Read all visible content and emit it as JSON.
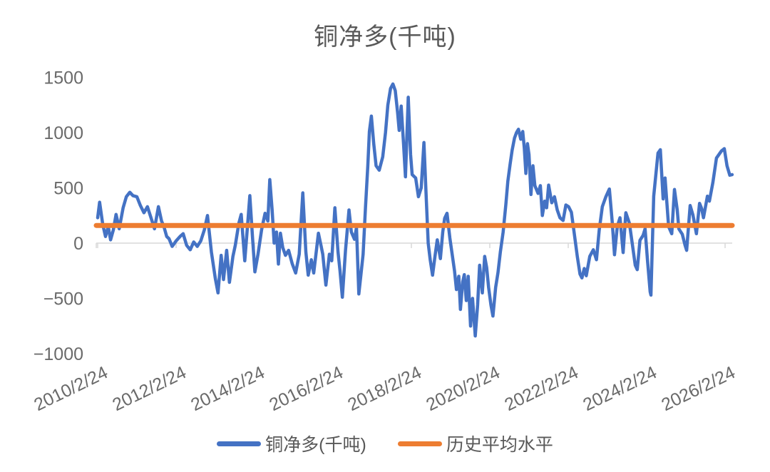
{
  "chart_data": {
    "type": "line",
    "title": "铜净多(千吨)",
    "legend_position": "bottom",
    "grid": "zero-axis-only",
    "colors": {
      "series": "#4472C4",
      "average": "#ED7D31",
      "axis": "#D9D9D9",
      "tick_text": "#6a6a6a",
      "title_text": "#595959"
    },
    "y_axis": {
      "min": -1000,
      "max": 1500,
      "ticks": [
        {
          "label": "1500",
          "value": 1500
        },
        {
          "label": "1000",
          "value": 1000
        },
        {
          "label": "500",
          "value": 500
        },
        {
          "label": "0",
          "value": 0
        },
        {
          "label": "−500",
          "value": -500
        },
        {
          "label": "−1000",
          "value": -1000
        }
      ]
    },
    "x_axis": {
      "label_rotation_deg": -26,
      "ticks": [
        {
          "label": "2010/2/24",
          "t": 2010.15
        },
        {
          "label": "2012/2/24",
          "t": 2012.15
        },
        {
          "label": "2014/2/24",
          "t": 2014.15
        },
        {
          "label": "2016/2/24",
          "t": 2016.15
        },
        {
          "label": "2018/2/24",
          "t": 2018.15
        },
        {
          "label": "2020/2/24",
          "t": 2020.15
        },
        {
          "label": "2022/2/24",
          "t": 2022.15
        },
        {
          "label": "2024/2/24",
          "t": 2024.15
        },
        {
          "label": "2026/2/24",
          "t": 2026.15
        }
      ]
    },
    "average_line": {
      "name": "历史平均水平",
      "value": 160
    },
    "series": [
      {
        "name": "铜净多(千吨)",
        "points": [
          [
            2010.15,
            230
          ],
          [
            2010.2,
            370
          ],
          [
            2010.28,
            170
          ],
          [
            2010.35,
            60
          ],
          [
            2010.42,
            150
          ],
          [
            2010.48,
            30
          ],
          [
            2010.55,
            120
          ],
          [
            2010.62,
            260
          ],
          [
            2010.7,
            130
          ],
          [
            2010.8,
            320
          ],
          [
            2010.88,
            420
          ],
          [
            2010.97,
            460
          ],
          [
            2011.05,
            430
          ],
          [
            2011.15,
            420
          ],
          [
            2011.24,
            340
          ],
          [
            2011.33,
            275
          ],
          [
            2011.42,
            330
          ],
          [
            2011.51,
            230
          ],
          [
            2011.6,
            130
          ],
          [
            2011.7,
            330
          ],
          [
            2011.78,
            200
          ],
          [
            2011.84,
            150
          ],
          [
            2011.91,
            60
          ],
          [
            2011.97,
            40
          ],
          [
            2012.05,
            -30
          ],
          [
            2012.15,
            20
          ],
          [
            2012.25,
            60
          ],
          [
            2012.33,
            85
          ],
          [
            2012.42,
            -20
          ],
          [
            2012.51,
            -60
          ],
          [
            2012.6,
            10
          ],
          [
            2012.69,
            -30
          ],
          [
            2012.78,
            20
          ],
          [
            2012.87,
            120
          ],
          [
            2012.95,
            250
          ],
          [
            2013.05,
            -80
          ],
          [
            2013.15,
            -320
          ],
          [
            2013.22,
            -450
          ],
          [
            2013.3,
            -110
          ],
          [
            2013.36,
            -330
          ],
          [
            2013.44,
            -65
          ],
          [
            2013.51,
            -355
          ],
          [
            2013.6,
            -120
          ],
          [
            2013.66,
            -20
          ],
          [
            2013.75,
            180
          ],
          [
            2013.81,
            260
          ],
          [
            2013.9,
            -160
          ],
          [
            2013.97,
            150
          ],
          [
            2014.03,
            430
          ],
          [
            2014.1,
            50
          ],
          [
            2014.16,
            -260
          ],
          [
            2014.24,
            -100
          ],
          [
            2014.33,
            120
          ],
          [
            2014.42,
            270
          ],
          [
            2014.49,
            200
          ],
          [
            2014.54,
            575
          ],
          [
            2014.6,
            300
          ],
          [
            2014.65,
            0
          ],
          [
            2014.71,
            100
          ],
          [
            2014.76,
            -190
          ],
          [
            2014.81,
            90
          ],
          [
            2014.87,
            -40
          ],
          [
            2014.94,
            -110
          ],
          [
            2015.02,
            -65
          ],
          [
            2015.11,
            -185
          ],
          [
            2015.2,
            -270
          ],
          [
            2015.29,
            -100
          ],
          [
            2015.38,
            455
          ],
          [
            2015.46,
            -80
          ],
          [
            2015.52,
            -290
          ],
          [
            2015.6,
            -150
          ],
          [
            2015.66,
            -270
          ],
          [
            2015.73,
            -60
          ],
          [
            2015.78,
            90
          ],
          [
            2015.85,
            -30
          ],
          [
            2015.89,
            -100
          ],
          [
            2015.97,
            -380
          ],
          [
            2016.06,
            -100
          ],
          [
            2016.12,
            -160
          ],
          [
            2016.2,
            320
          ],
          [
            2016.28,
            -80
          ],
          [
            2016.33,
            -250
          ],
          [
            2016.39,
            -490
          ],
          [
            2016.47,
            -65
          ],
          [
            2016.56,
            300
          ],
          [
            2016.62,
            100
          ],
          [
            2016.7,
            35
          ],
          [
            2016.75,
            140
          ],
          [
            2016.81,
            -460
          ],
          [
            2016.86,
            -300
          ],
          [
            2016.92,
            -100
          ],
          [
            2016.98,
            320
          ],
          [
            2017.04,
            700
          ],
          [
            2017.08,
            1010
          ],
          [
            2017.13,
            1150
          ],
          [
            2017.19,
            900
          ],
          [
            2017.25,
            700
          ],
          [
            2017.33,
            660
          ],
          [
            2017.42,
            780
          ],
          [
            2017.49,
            1000
          ],
          [
            2017.55,
            1250
          ],
          [
            2017.62,
            1400
          ],
          [
            2017.68,
            1440
          ],
          [
            2017.74,
            1380
          ],
          [
            2017.8,
            1180
          ],
          [
            2017.84,
            1020
          ],
          [
            2017.89,
            1240
          ],
          [
            2017.95,
            900
          ],
          [
            2018.0,
            600
          ],
          [
            2018.07,
            1320
          ],
          [
            2018.13,
            800
          ],
          [
            2018.17,
            620
          ],
          [
            2018.26,
            590
          ],
          [
            2018.33,
            420
          ],
          [
            2018.4,
            500
          ],
          [
            2018.47,
            910
          ],
          [
            2018.53,
            400
          ],
          [
            2018.58,
            0
          ],
          [
            2018.63,
            -150
          ],
          [
            2018.69,
            -290
          ],
          [
            2018.76,
            -100
          ],
          [
            2018.81,
            30
          ],
          [
            2018.89,
            -140
          ],
          [
            2018.95,
            100
          ],
          [
            2019.0,
            225
          ],
          [
            2019.06,
            270
          ],
          [
            2019.13,
            50
          ],
          [
            2019.17,
            -50
          ],
          [
            2019.25,
            -250
          ],
          [
            2019.3,
            -420
          ],
          [
            2019.36,
            -300
          ],
          [
            2019.4,
            -600
          ],
          [
            2019.46,
            -350
          ],
          [
            2019.5,
            -285
          ],
          [
            2019.55,
            -520
          ],
          [
            2019.6,
            -300
          ],
          [
            2019.66,
            -750
          ],
          [
            2019.71,
            -500
          ],
          [
            2019.78,
            -840
          ],
          [
            2019.84,
            -560
          ],
          [
            2019.89,
            -200
          ],
          [
            2019.96,
            -450
          ],
          [
            2020.02,
            -120
          ],
          [
            2020.07,
            -220
          ],
          [
            2020.12,
            -400
          ],
          [
            2020.18,
            -560
          ],
          [
            2020.23,
            -660
          ],
          [
            2020.3,
            -400
          ],
          [
            2020.36,
            -265
          ],
          [
            2020.42,
            -80
          ],
          [
            2020.49,
            100
          ],
          [
            2020.56,
            350
          ],
          [
            2020.61,
            560
          ],
          [
            2020.67,
            720
          ],
          [
            2020.72,
            840
          ],
          [
            2020.78,
            950
          ],
          [
            2020.83,
            1000
          ],
          [
            2020.88,
            1030
          ],
          [
            2020.94,
            940
          ],
          [
            2020.99,
            1010
          ],
          [
            2021.03,
            860
          ],
          [
            2021.07,
            630
          ],
          [
            2021.11,
            900
          ],
          [
            2021.15,
            800
          ],
          [
            2021.2,
            440
          ],
          [
            2021.25,
            700
          ],
          [
            2021.3,
            520
          ],
          [
            2021.38,
            450
          ],
          [
            2021.44,
            520
          ],
          [
            2021.49,
            250
          ],
          [
            2021.55,
            380
          ],
          [
            2021.6,
            320
          ],
          [
            2021.65,
            525
          ],
          [
            2021.73,
            365
          ],
          [
            2021.8,
            420
          ],
          [
            2021.87,
            300
          ],
          [
            2021.94,
            230
          ],
          [
            2022.02,
            205
          ],
          [
            2022.09,
            345
          ],
          [
            2022.16,
            330
          ],
          [
            2022.23,
            280
          ],
          [
            2022.3,
            100
          ],
          [
            2022.38,
            -120
          ],
          [
            2022.45,
            -280
          ],
          [
            2022.5,
            -315
          ],
          [
            2022.56,
            -230
          ],
          [
            2022.61,
            -295
          ],
          [
            2022.7,
            -120
          ],
          [
            2022.79,
            -60
          ],
          [
            2022.87,
            -150
          ],
          [
            2022.94,
            115
          ],
          [
            2023.02,
            330
          ],
          [
            2023.11,
            420
          ],
          [
            2023.2,
            490
          ],
          [
            2023.27,
            200
          ],
          [
            2023.33,
            -105
          ],
          [
            2023.4,
            150
          ],
          [
            2023.47,
            230
          ],
          [
            2023.55,
            -85
          ],
          [
            2023.62,
            275
          ],
          [
            2023.71,
            180
          ],
          [
            2023.78,
            5
          ],
          [
            2023.86,
            -200
          ],
          [
            2023.91,
            -240
          ],
          [
            2023.98,
            25
          ],
          [
            2024.06,
            70
          ],
          [
            2024.11,
            130
          ],
          [
            2024.17,
            -150
          ],
          [
            2024.24,
            -440
          ],
          [
            2024.26,
            -470
          ],
          [
            2024.33,
            425
          ],
          [
            2024.44,
            815
          ],
          [
            2024.5,
            845
          ],
          [
            2024.57,
            400
          ],
          [
            2024.62,
            590
          ],
          [
            2024.71,
            150
          ],
          [
            2024.79,
            85
          ],
          [
            2024.86,
            485
          ],
          [
            2024.93,
            300
          ],
          [
            2024.97,
            130
          ],
          [
            2025.06,
            80
          ],
          [
            2025.13,
            -20
          ],
          [
            2025.17,
            -65
          ],
          [
            2025.26,
            340
          ],
          [
            2025.33,
            255
          ],
          [
            2025.42,
            85
          ],
          [
            2025.5,
            360
          ],
          [
            2025.55,
            315
          ],
          [
            2025.6,
            230
          ],
          [
            2025.7,
            425
          ],
          [
            2025.75,
            380
          ],
          [
            2025.84,
            550
          ],
          [
            2025.93,
            770
          ],
          [
            2026.06,
            835
          ],
          [
            2026.13,
            855
          ],
          [
            2026.2,
            700
          ],
          [
            2026.27,
            615
          ],
          [
            2026.33,
            620
          ]
        ]
      }
    ],
    "legend": [
      "铜净多(千吨)",
      "历史平均水平"
    ]
  }
}
